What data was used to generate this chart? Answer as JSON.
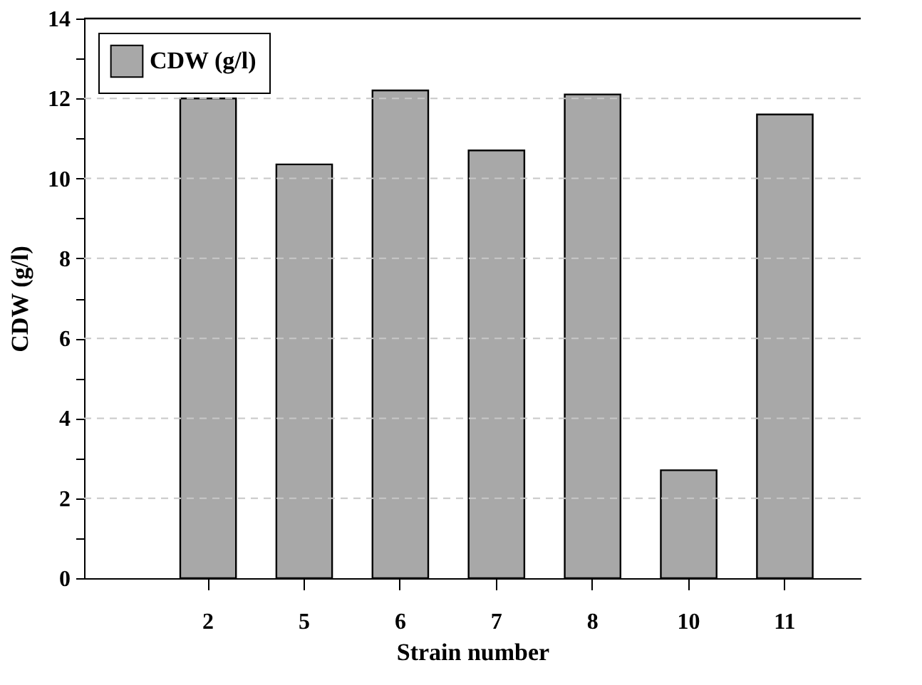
{
  "chart_data": {
    "type": "bar",
    "xlabel": "Strain number",
    "ylabel": "CDW (g/l)",
    "categories": [
      "2",
      "5",
      "6",
      "7",
      "8",
      "10",
      "11"
    ],
    "series": [
      {
        "name": "CDW (g/l)",
        "color": "#a8a8a8",
        "values": [
          12.0,
          10.35,
          12.2,
          10.7,
          12.1,
          2.7,
          11.6
        ]
      }
    ],
    "ylim": [
      0,
      14
    ],
    "yticks": [
      0,
      {
        "value": 1,
        "label": null
      },
      2,
      {
        "value": 3,
        "label": null
      },
      4,
      {
        "value": 5,
        "label": null
      },
      6,
      {
        "value": 7,
        "label": null
      },
      8,
      {
        "value": 9,
        "label": null
      },
      10,
      {
        "value": 11,
        "label": null
      },
      12,
      {
        "value": 13,
        "label": null
      },
      14
    ],
    "grid": "y",
    "legend": "top left"
  }
}
